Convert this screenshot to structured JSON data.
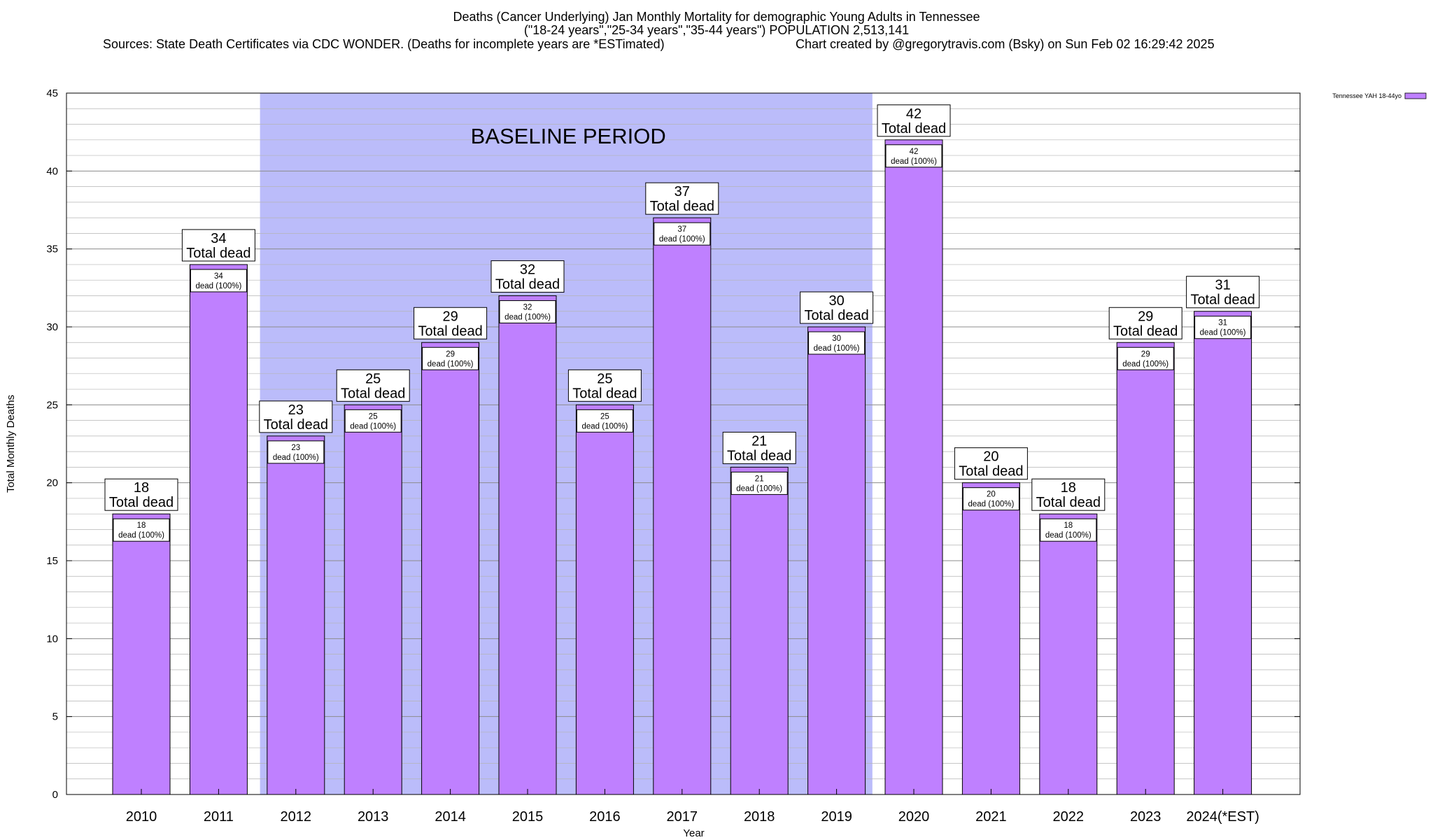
{
  "header": {
    "title": "Deaths (Cancer Underlying) Jan Monthly Mortality for demographic Young Adults in Tennessee",
    "subtitle": "(\"18-24 years\",\"25-34 years\",\"35-44 years\") POPULATION 2,513,141",
    "sources": "Sources: State Death Certificates via CDC WONDER. (Deaths for incomplete years are *ESTimated)",
    "credit": "Chart created by @gregorytravis.com (Bsky) on Sun Feb 02 16:29:42 2025"
  },
  "colors": {
    "bar_fill": "#bf80ff",
    "baseline_band": "#bbbcfa",
    "grid": "#a0a0a0"
  },
  "chart_data": {
    "type": "bar",
    "title": "Deaths (Cancer Underlying) Jan Monthly Mortality for demographic Young Adults in Tennessee",
    "xlabel": "Year",
    "ylabel": "Total Monthly Deaths",
    "ylim": [
      0,
      45
    ],
    "yticks": [
      0,
      5,
      10,
      15,
      20,
      25,
      30,
      35,
      40,
      45
    ],
    "grid": true,
    "legend": {
      "position": "top-right",
      "entries": [
        "Tennessee YAH 18-44yo"
      ]
    },
    "categories": [
      "2010",
      "2011",
      "2012",
      "2013",
      "2014",
      "2015",
      "2016",
      "2017",
      "2018",
      "2019",
      "2020",
      "2021",
      "2022",
      "2023",
      "2024(*EST)"
    ],
    "series": [
      {
        "name": "Tennessee YAH 18-44yo",
        "values": [
          18,
          34,
          23,
          25,
          29,
          32,
          25,
          37,
          21,
          30,
          42,
          20,
          18,
          29,
          31
        ]
      }
    ],
    "baseline_period": {
      "label": "BASELINE PERIOD",
      "start": "2012",
      "end": "2019"
    },
    "top_label_suffix": "Total dead",
    "inner_label_suffix": "dead (100%)"
  }
}
